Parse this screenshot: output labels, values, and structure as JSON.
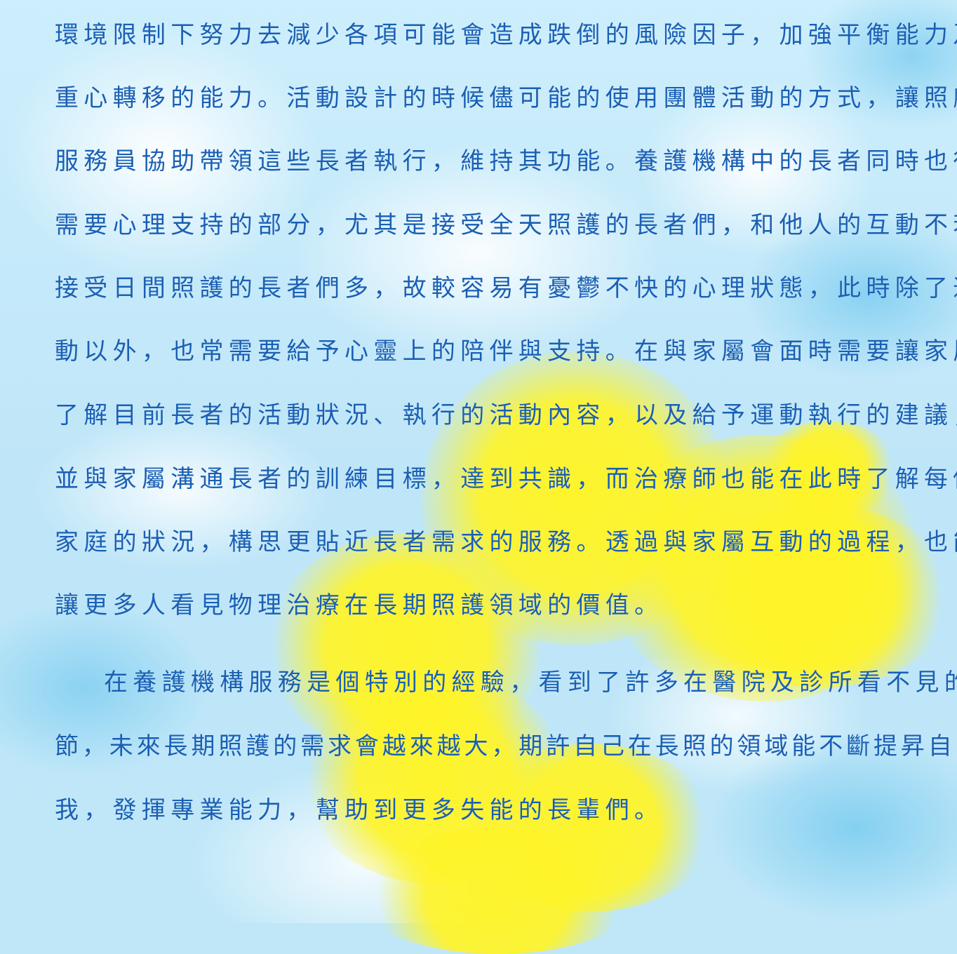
{
  "paragraphs": [
    {
      "lines": [
        "環境限制下努力去減少各項可能會造成跌倒的風險因子，加強平衡能力及",
        "重心轉移的能力。活動設計的時候儘可能的使用團體活動的方式，讓照顧",
        "服務員協助帶領這些長者執行，維持其功能。養護機構中的長者同時也很",
        "需要心理支持的部分，尤其是接受全天照護的長者們，和他人的互動不若",
        "接受日間照護的長者們多，故較容易有憂鬱不快的心理狀態，此時除了運",
        "動以外，也常需要給予心靈上的陪伴與支持。在與家屬會面時需要讓家屬",
        "了解目前長者的活動狀況、執行的活動內容，以及給予運動執行的建議，",
        "並與家屬溝通長者的訓練目標，達到共識，而治療師也能在此時了解每個",
        "家庭的狀況，構思更貼近長者需求的服務。透過與家屬互動的過程，也能",
        "讓更多人看見物理治療在長期照護領域的價值。"
      ]
    },
    {
      "lines": [
        "在養護機構服務是個特別的經驗，看到了許多在醫院及診所看不見的細",
        "節，未來長期照護的需求會越來越大，期許自己在長照的領域能不斷提昇自",
        "我，發揮專業能力，幫助到更多失能的長輩們。"
      ]
    }
  ],
  "colors": {
    "text": "#1a5fb4",
    "sky": "#bfe7f8",
    "sun": "#fff428"
  }
}
